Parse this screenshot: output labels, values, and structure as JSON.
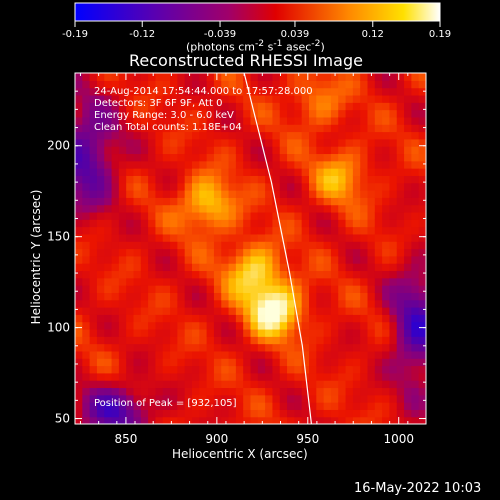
{
  "colorbar": {
    "ticks": [
      "-0.19",
      "-0.12",
      "-0.039",
      "0.039",
      "0.12",
      "0.19"
    ],
    "tick_values": [
      -0.19,
      -0.12,
      -0.039,
      0.039,
      0.12,
      0.19
    ],
    "range": [
      -0.19,
      0.19
    ],
    "units_html": "(photons cm<sup>-2</sup> s<sup>-1</sup> asec<sup>-2</sup>)",
    "units": "(photons cm-2 s-1 asec-2)"
  },
  "footer": {
    "date": "16-May-2022 10:03"
  },
  "chart_data": {
    "type": "heatmap",
    "title": "Reconstructed RHESSI Image",
    "xlabel": "Heliocentric X (arcsec)",
    "ylabel": "Heliocentric Y (arcsec)",
    "xlim": [
      822,
      1015
    ],
    "ylim": [
      47,
      240
    ],
    "x_ticks": [
      850,
      900,
      950,
      1000
    ],
    "y_ticks": [
      50,
      100,
      150,
      200
    ],
    "colormap": "hot-inverse (blue-purple-red-orange-yellow-white)",
    "info_lines": [
      "24-Aug-2014 17:54:44.000 to 17:57:28.000",
      "Detectors: 3F 6F 9F, Att 0",
      "Energy Range: 3.0 - 6.0 keV",
      "Clean   Total counts: 1.18E+04"
    ],
    "peak_label": "Position of Peak = [932,105]",
    "peak": [
      932,
      105
    ],
    "sources": [
      {
        "x": 932,
        "y": 110,
        "value": 0.19
      },
      {
        "x": 920,
        "y": 132,
        "value": 0.15
      },
      {
        "x": 895,
        "y": 168,
        "value": 0.15
      },
      {
        "x": 968,
        "y": 183,
        "value": 0.12
      },
      {
        "x": 955,
        "y": 225,
        "value": 0.1
      }
    ],
    "limb_curve": [
      [
        915,
        240
      ],
      [
        930,
        180
      ],
      [
        940,
        130
      ],
      [
        947,
        90
      ],
      [
        952,
        47
      ]
    ]
  },
  "colors": {
    "background": "#000000",
    "text": "#ffffff",
    "limb": "#ffffff"
  }
}
